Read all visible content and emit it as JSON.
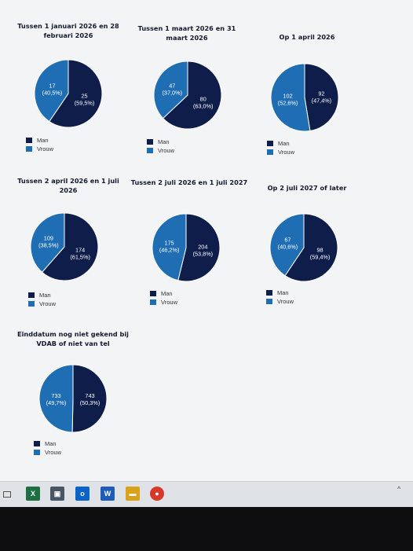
{
  "colors": {
    "man": "#0f1d4a",
    "vrouw": "#1f6eb3"
  },
  "chart_data": [
    {
      "type": "pie",
      "title": "Tussen 1 januari 2026 en 28 februari 2026",
      "slices": [
        {
          "label": "Man",
          "value": 25,
          "pct": "(59,5%)"
        },
        {
          "label": "Vrouw",
          "value": 17,
          "pct": "(40,5%)"
        }
      ]
    },
    {
      "type": "pie",
      "title": "Tussen 1 maart 2026 en 31 maart 2026",
      "slices": [
        {
          "label": "Man",
          "value": 80,
          "pct": "(63,0%)"
        },
        {
          "label": "Vrouw",
          "value": 47,
          "pct": "(37,0%)"
        }
      ]
    },
    {
      "type": "pie",
      "title": "Op 1 april 2026",
      "slices": [
        {
          "label": "Man",
          "value": 92,
          "pct": "(47,4%)"
        },
        {
          "label": "Vrouw",
          "value": 102,
          "pct": "(52,6%)"
        }
      ]
    },
    {
      "type": "pie",
      "title": "Tussen 2 april 2026 en 1 juli 2026",
      "slices": [
        {
          "label": "Man",
          "value": 174,
          "pct": "(61,5%)"
        },
        {
          "label": "Vrouw",
          "value": 109,
          "pct": "(38,5%)"
        }
      ]
    },
    {
      "type": "pie",
      "title": "Tussen 2 juli 2026 en 1 juli 2027",
      "slices": [
        {
          "label": "Man",
          "value": 204,
          "pct": "(53,8%)"
        },
        {
          "label": "Vrouw",
          "value": 175,
          "pct": "(46,2%)"
        }
      ]
    },
    {
      "type": "pie",
      "title": "Op 2 juli 2027 of later",
      "slices": [
        {
          "label": "Man",
          "value": 98,
          "pct": "(59,4%)"
        },
        {
          "label": "Vrouw",
          "value": 67,
          "pct": "(40,6%)"
        }
      ]
    },
    {
      "type": "pie",
      "title": "Einddatum nog niet gekend bij VDAB of niet van tel",
      "slices": [
        {
          "label": "Man",
          "value": 743,
          "pct": "(50,3%)"
        },
        {
          "label": "Vrouw",
          "value": 733,
          "pct": "(49,7%)"
        }
      ]
    }
  ],
  "legend": {
    "man": "Man",
    "vrouw": "Vrouw"
  },
  "taskbar": {
    "icons": [
      {
        "name": "excel-icon",
        "glyph": "X",
        "color": "#1d6f42"
      },
      {
        "name": "printer-icon",
        "glyph": "▣",
        "color": "#4a5564"
      },
      {
        "name": "outlook-icon",
        "glyph": "o",
        "color": "#0a64c8"
      },
      {
        "name": "word-icon",
        "glyph": "W",
        "color": "#1f5bb8"
      },
      {
        "name": "folder-icon",
        "glyph": "▬",
        "color": "#d9a21b"
      },
      {
        "name": "chrome-icon",
        "glyph": "●",
        "color": "#d8382c"
      }
    ]
  }
}
